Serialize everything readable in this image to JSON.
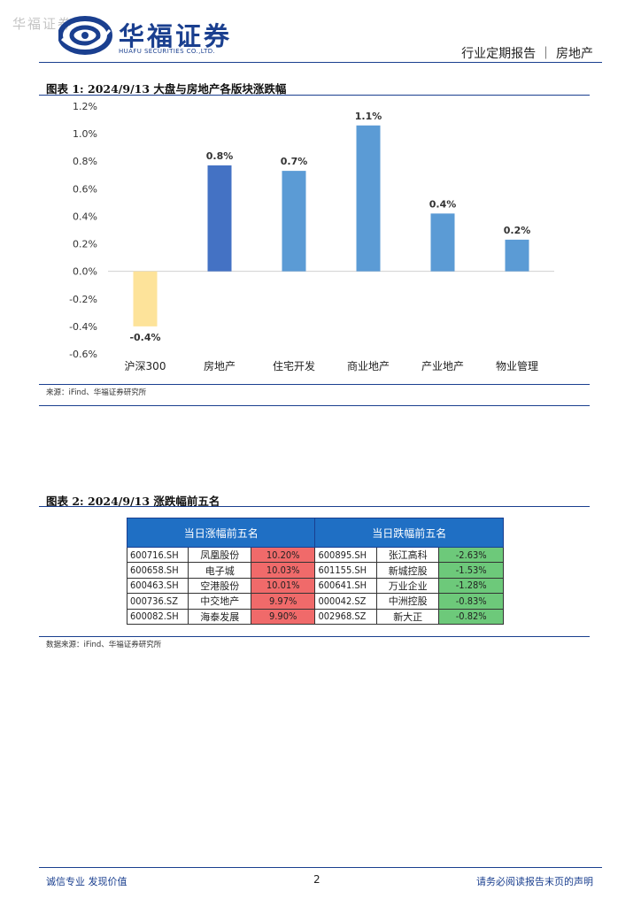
{
  "watermark": "华福证券",
  "logo": {
    "cn": "华福证券",
    "en": "HUAFU SECURITIES CO.,LTD."
  },
  "header": {
    "report_type": "行业定期报告 ｜ 房地产"
  },
  "figure1": {
    "title": "图表 1:  2024/9/13 大盘与房地产各版块涨跌幅",
    "source": "来源：iFind、华福证券研究所"
  },
  "chart_data": {
    "type": "bar",
    "categories": [
      "沪深300",
      "房地产",
      "住宅开发",
      "商业地产",
      "产业地产",
      "物业管理"
    ],
    "values": [
      -0.4,
      0.77,
      0.73,
      1.06,
      0.42,
      0.23
    ],
    "data_labels": [
      "-0.4%",
      "0.8%",
      "0.7%",
      "1.1%",
      "0.4%",
      "0.2%"
    ],
    "ytick_labels": [
      "1.2%",
      "1.0%",
      "0.8%",
      "0.6%",
      "0.4%",
      "0.2%",
      "0.0%",
      "-0.2%",
      "-0.4%",
      "-0.6%"
    ],
    "ylim": [
      -0.6,
      1.2
    ],
    "bar_colors": [
      "#fde39a",
      "#4472c4",
      "#5b9bd5",
      "#5b9bd5",
      "#5b9bd5",
      "#5b9bd5"
    ],
    "grid": false,
    "title": "",
    "xlabel": "",
    "ylabel": ""
  },
  "figure2": {
    "title": "图表 2:  2024/9/13 涨跌幅前五名",
    "source": "数据来源：iFind、华福证券研究所",
    "gainers_header": "当日涨幅前五名",
    "losers_header": "当日跌幅前五名",
    "gainers": [
      {
        "code": "600716.SH",
        "name": "凤凰股份",
        "change": "10.20%"
      },
      {
        "code": "600658.SH",
        "name": "电子城",
        "change": "10.03%"
      },
      {
        "code": "600463.SH",
        "name": "空港股份",
        "change": "10.01%"
      },
      {
        "code": "000736.SZ",
        "name": "中交地产",
        "change": "9.97%"
      },
      {
        "code": "600082.SH",
        "name": "海泰发展",
        "change": "9.90%"
      }
    ],
    "losers": [
      {
        "code": "600895.SH",
        "name": "张江高科",
        "change": "-2.63%"
      },
      {
        "code": "601155.SH",
        "name": "新城控股",
        "change": "-1.53%"
      },
      {
        "code": "600641.SH",
        "name": "万业企业",
        "change": "-1.28%"
      },
      {
        "code": "000042.SZ",
        "name": "中洲控股",
        "change": "-0.83%"
      },
      {
        "code": "002968.SZ",
        "name": "新大正",
        "change": "-0.82%"
      }
    ],
    "colors": {
      "header": "#1f6fc4",
      "gain": "#f06a6a",
      "loss": "#6dc97a"
    }
  },
  "footer": {
    "left": "诚信专业  发现价值",
    "page": "2",
    "right": "请务必阅读报告末页的声明"
  }
}
